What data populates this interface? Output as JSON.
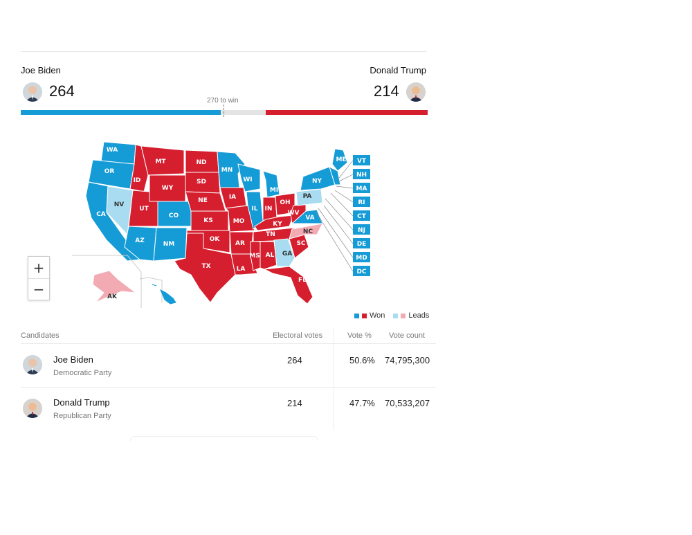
{
  "header": {
    "left_name": "Joe Biden",
    "left_votes": "264",
    "right_name": "Donald Trump",
    "right_votes": "214",
    "threshold_label": "270 to win"
  },
  "progress": {
    "total": 538,
    "biden": 264,
    "trump": 214,
    "to_win": 270
  },
  "colors": {
    "dem_won": "#159bd6",
    "dem_leads": "#a9dcf0",
    "rep_won": "#d51f2f",
    "rep_leads": "#f2aab3"
  },
  "map": {
    "states": [
      {
        "code": "WA",
        "status": "dem_won"
      },
      {
        "code": "OR",
        "status": "dem_won"
      },
      {
        "code": "CA",
        "status": "dem_won"
      },
      {
        "code": "NV",
        "status": "dem_leads"
      },
      {
        "code": "ID",
        "status": "rep_won"
      },
      {
        "code": "MT",
        "status": "rep_won"
      },
      {
        "code": "WY",
        "status": "rep_won"
      },
      {
        "code": "UT",
        "status": "rep_won"
      },
      {
        "code": "AZ",
        "status": "dem_won"
      },
      {
        "code": "CO",
        "status": "dem_won"
      },
      {
        "code": "NM",
        "status": "dem_won"
      },
      {
        "code": "ND",
        "status": "rep_won"
      },
      {
        "code": "SD",
        "status": "rep_won"
      },
      {
        "code": "NE",
        "status": "rep_won"
      },
      {
        "code": "KS",
        "status": "rep_won"
      },
      {
        "code": "OK",
        "status": "rep_won"
      },
      {
        "code": "TX",
        "status": "rep_won"
      },
      {
        "code": "MN",
        "status": "dem_won"
      },
      {
        "code": "IA",
        "status": "rep_won"
      },
      {
        "code": "MO",
        "status": "rep_won"
      },
      {
        "code": "AR",
        "status": "rep_won"
      },
      {
        "code": "LA",
        "status": "rep_won"
      },
      {
        "code": "WI",
        "status": "dem_won"
      },
      {
        "code": "IL",
        "status": "dem_won"
      },
      {
        "code": "MI",
        "status": "dem_won"
      },
      {
        "code": "IN",
        "status": "rep_won"
      },
      {
        "code": "OH",
        "status": "rep_won"
      },
      {
        "code": "KY",
        "status": "rep_won"
      },
      {
        "code": "TN",
        "status": "rep_won"
      },
      {
        "code": "MS",
        "status": "rep_won"
      },
      {
        "code": "AL",
        "status": "rep_won"
      },
      {
        "code": "GA",
        "status": "dem_leads"
      },
      {
        "code": "FL",
        "status": "rep_won"
      },
      {
        "code": "SC",
        "status": "rep_won"
      },
      {
        "code": "NC",
        "status": "rep_leads"
      },
      {
        "code": "VA",
        "status": "dem_won"
      },
      {
        "code": "WV",
        "status": "rep_won"
      },
      {
        "code": "PA",
        "status": "dem_leads"
      },
      {
        "code": "NY",
        "status": "dem_won"
      },
      {
        "code": "ME",
        "status": "dem_won"
      },
      {
        "code": "AK",
        "status": "rep_leads"
      },
      {
        "code": "HI",
        "status": "dem_won"
      }
    ],
    "callouts": [
      "VT",
      "NH",
      "MA",
      "RI",
      "CT",
      "NJ",
      "DE",
      "MD",
      "DC"
    ]
  },
  "zoom": {
    "in_label": "+",
    "out_label": "−"
  },
  "legend": {
    "won": "Won",
    "leads": "Leads"
  },
  "table": {
    "headers": {
      "candidates": "Candidates",
      "electoral": "Electoral votes",
      "pct": "Vote %",
      "count": "Vote count"
    },
    "rows": [
      {
        "name": "Joe Biden",
        "party": "Democratic Party",
        "electoral": "264",
        "pct": "50.6%",
        "count": "74,795,300"
      },
      {
        "name": "Donald Trump",
        "party": "Republican Party",
        "electoral": "214",
        "pct": "47.7%",
        "count": "70,533,207"
      }
    ]
  }
}
